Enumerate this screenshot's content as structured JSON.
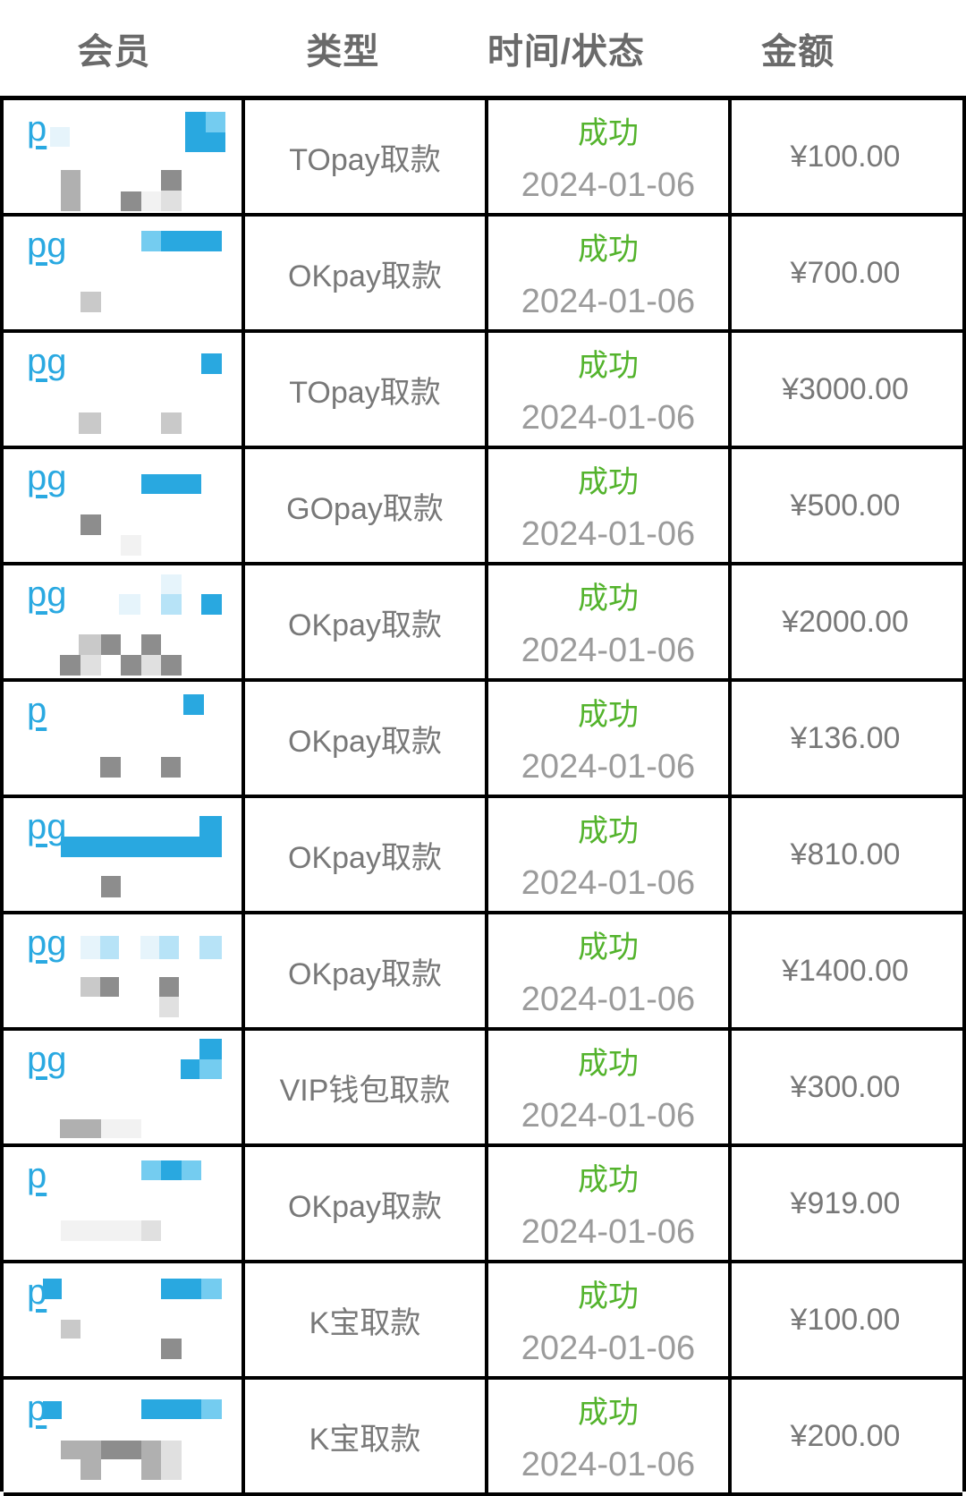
{
  "header": {
    "labels": [
      "会员",
      "类型",
      "时间/状态",
      "金额"
    ],
    "positions_pct": [
      11.8,
      35.5,
      58.6,
      82.6
    ]
  },
  "colors": {
    "link_blue": "#2aa9e1",
    "status_green": "#53b32c",
    "text_gray": "#787878",
    "date_gray": "#9b9b9b",
    "header_gray": "#6a6a6a",
    "border_black": "#000000",
    "mosaic_palette": {
      "b1": "#29a8e0",
      "b2": "#74ccf0",
      "b3": "#b7e3f7",
      "b4": "#e6f4fb",
      "g1": "#8d8d8d",
      "g2": "#b0b0b0",
      "g3": "#c9c9c9",
      "g4": "#e0e0e0",
      "g5": "#f2f2f2"
    }
  },
  "rows": [
    {
      "member_visible_text": "p",
      "type_label": "TOpay取款",
      "status": "成功",
      "date": "2024-01-06",
      "amount": "¥100.00",
      "mosaic": [
        [
          52,
          30,
          22,
          22,
          "b4"
        ],
        [
          203,
          13,
          23,
          45,
          "b1"
        ],
        [
          226,
          13,
          22,
          23,
          "b2"
        ],
        [
          226,
          36,
          22,
          22,
          "b1"
        ],
        [
          64,
          78,
          22,
          46,
          "g2"
        ],
        [
          131,
          102,
          23,
          22,
          "g1"
        ],
        [
          154,
          102,
          22,
          22,
          "g5"
        ],
        [
          176,
          78,
          23,
          23,
          "g1"
        ],
        [
          176,
          101,
          23,
          23,
          "g4"
        ]
      ]
    },
    {
      "member_visible_text": "pg",
      "type_label": "OKpay取款",
      "status": "成功",
      "date": "2024-01-06",
      "amount": "¥700.00",
      "mosaic": [
        [
          154,
          16,
          22,
          23,
          "b2"
        ],
        [
          176,
          16,
          68,
          23,
          "b1"
        ],
        [
          86,
          84,
          23,
          23,
          "g3"
        ]
      ]
    },
    {
      "member_visible_text": "pg",
      "type_label": "TOpay取款",
      "status": "成功",
      "date": "2024-01-06",
      "amount": "¥3000.00",
      "mosaic": [
        [
          221,
          23,
          23,
          23,
          "b1"
        ],
        [
          84,
          89,
          25,
          24,
          "g3"
        ],
        [
          176,
          89,
          23,
          24,
          "g3"
        ]
      ]
    },
    {
      "member_visible_text": "pg",
      "type_label": "GOpay取款",
      "status": "成功",
      "date": "2024-01-06",
      "amount": "¥500.00",
      "mosaic": [
        [
          154,
          28,
          67,
          22,
          "b1"
        ],
        [
          86,
          73,
          23,
          23,
          "g1"
        ],
        [
          131,
          96,
          23,
          23,
          "g5"
        ]
      ]
    },
    {
      "member_visible_text": "pg",
      "type_label": "OKpay取款",
      "status": "成功",
      "date": "2024-01-06",
      "amount": "¥2000.00",
      "mosaic": [
        [
          176,
          10,
          23,
          22,
          "b4"
        ],
        [
          129,
          32,
          24,
          23,
          "b4"
        ],
        [
          176,
          32,
          23,
          23,
          "b3"
        ],
        [
          221,
          32,
          23,
          23,
          "b1"
        ],
        [
          84,
          77,
          25,
          23,
          "g3"
        ],
        [
          109,
          77,
          22,
          23,
          "g1"
        ],
        [
          154,
          77,
          22,
          23,
          "g1"
        ],
        [
          63,
          100,
          23,
          23,
          "g1"
        ],
        [
          86,
          100,
          23,
          23,
          "g4"
        ],
        [
          131,
          100,
          23,
          23,
          "g1"
        ],
        [
          154,
          100,
          22,
          23,
          "g4"
        ],
        [
          176,
          100,
          23,
          23,
          "g1"
        ]
      ]
    },
    {
      "member_visible_text": "p",
      "type_label": "OKpay取款",
      "status": "成功",
      "date": "2024-01-06",
      "amount": "¥136.00",
      "mosaic": [
        [
          201,
          14,
          23,
          23,
          "b1"
        ],
        [
          108,
          84,
          23,
          23,
          "g1"
        ],
        [
          176,
          84,
          22,
          23,
          "g1"
        ]
      ]
    },
    {
      "member_visible_text": "pg",
      "type_label": "OKpay取款",
      "status": "成功",
      "date": "2024-01-06",
      "amount": "¥810.00",
      "mosaic": [
        [
          219,
          20,
          25,
          46,
          "b1"
        ],
        [
          64,
          43,
          155,
          23,
          "b1"
        ],
        [
          109,
          87,
          22,
          24,
          "g1"
        ]
      ]
    },
    {
      "member_visible_text": "pg",
      "type_label": "OKpay取款",
      "status": "成功",
      "date": "2024-01-06",
      "amount": "¥1400.00",
      "mosaic": [
        [
          86,
          24,
          22,
          26,
          "b4"
        ],
        [
          108,
          24,
          21,
          26,
          "b3"
        ],
        [
          153,
          24,
          21,
          26,
          "b4"
        ],
        [
          174,
          24,
          22,
          26,
          "b3"
        ],
        [
          219,
          24,
          25,
          26,
          "b3"
        ],
        [
          86,
          70,
          22,
          22,
          "g3"
        ],
        [
          108,
          70,
          21,
          22,
          "g1"
        ],
        [
          174,
          70,
          22,
          22,
          "g1"
        ],
        [
          174,
          92,
          22,
          23,
          "g4"
        ]
      ]
    },
    {
      "member_visible_text": "pg",
      "type_label": "VIP钱包取款",
      "status": "成功",
      "date": "2024-01-06",
      "amount": "¥300.00",
      "mosaic": [
        [
          219,
          9,
          25,
          23,
          "b1"
        ],
        [
          198,
          32,
          21,
          22,
          "b1"
        ],
        [
          219,
          32,
          25,
          22,
          "b2"
        ],
        [
          63,
          99,
          46,
          21,
          "g2"
        ],
        [
          109,
          99,
          45,
          21,
          "g5"
        ]
      ]
    },
    {
      "member_visible_text": "p",
      "type_label": "OKpay取款",
      "status": "成功",
      "date": "2024-01-06",
      "amount": "¥919.00",
      "mosaic": [
        [
          154,
          15,
          22,
          22,
          "b2"
        ],
        [
          176,
          15,
          23,
          22,
          "b1"
        ],
        [
          199,
          15,
          22,
          22,
          "b2"
        ],
        [
          64,
          82,
          90,
          23,
          "g5"
        ],
        [
          154,
          82,
          22,
          23,
          "g4"
        ]
      ]
    },
    {
      "member_visible_text": "p",
      "type_label": "K宝取款",
      "status": "成功",
      "date": "2024-01-06",
      "amount": "¥100.00",
      "mosaic": [
        [
          44,
          17,
          21,
          23,
          "b1"
        ],
        [
          176,
          17,
          45,
          23,
          "b1"
        ],
        [
          221,
          17,
          23,
          23,
          "b2"
        ],
        [
          64,
          63,
          22,
          21,
          "g3"
        ],
        [
          176,
          84,
          23,
          23,
          "g1"
        ]
      ]
    },
    {
      "member_visible_text": "p",
      "type_label": "K宝取款",
      "status": "成功",
      "date": "2024-01-06",
      "amount": "¥200.00",
      "mosaic": [
        [
          44,
          24,
          21,
          20,
          "b1"
        ],
        [
          154,
          22,
          67,
          22,
          "b1"
        ],
        [
          221,
          22,
          23,
          22,
          "b2"
        ],
        [
          64,
          68,
          22,
          21,
          "g2"
        ],
        [
          86,
          68,
          23,
          44,
          "g2"
        ],
        [
          109,
          68,
          45,
          21,
          "g1"
        ],
        [
          154,
          68,
          22,
          44,
          "g2"
        ],
        [
          176,
          68,
          23,
          44,
          "g4"
        ]
      ]
    }
  ]
}
